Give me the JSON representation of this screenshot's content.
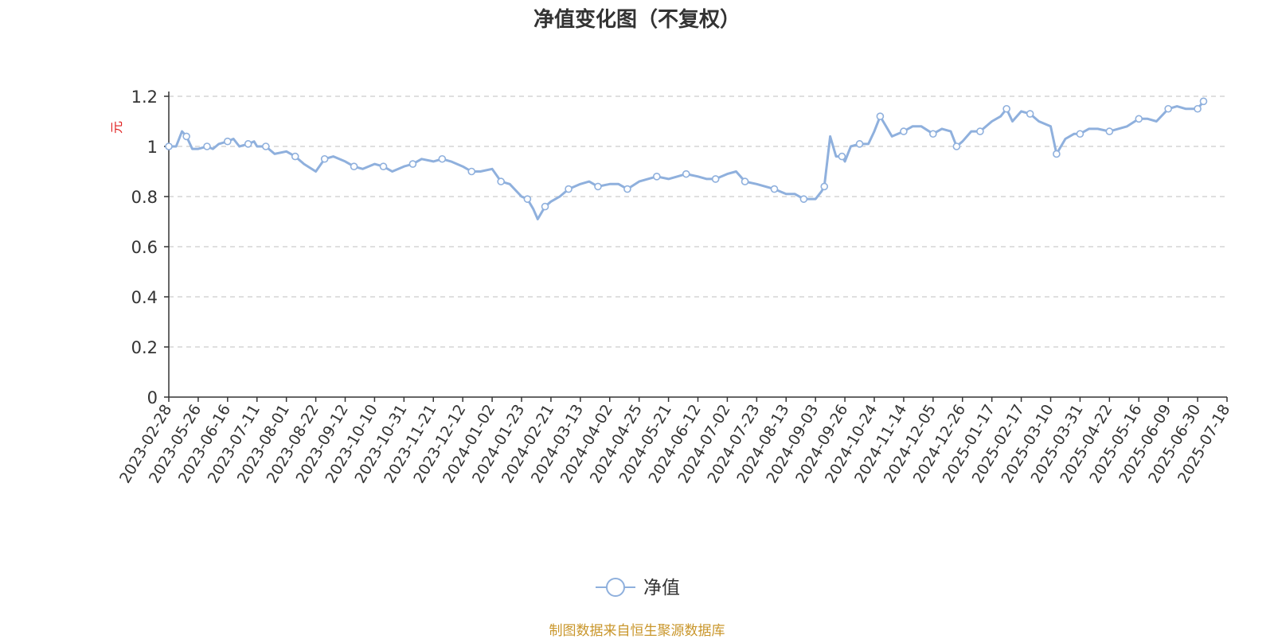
{
  "title": "净值变化图（不复权）",
  "source": "制图数据来自恒生聚源数据库",
  "legend": {
    "label": "净值",
    "position": "bottom-center"
  },
  "colors": {
    "line": "#8fb0dd",
    "title": "#333333",
    "axis": "#333333",
    "grid": "#cccccc",
    "unit": "#e02020",
    "source": "#c9962b"
  },
  "chart_data": {
    "type": "line",
    "title": "净值变化图（不复权）",
    "xlabel": "",
    "ylabel": "元",
    "ylim": [
      0,
      1.2
    ],
    "yticks": [
      "0",
      "0.2",
      "0.4",
      "0.6",
      "0.8",
      "1",
      "1.2"
    ],
    "grid": true,
    "categories": [
      "2023-02-28",
      "2023-05-26",
      "2023-06-16",
      "2023-07-11",
      "2023-08-01",
      "2023-08-22",
      "2023-09-12",
      "2023-10-10",
      "2023-10-31",
      "2023-11-21",
      "2023-12-12",
      "2024-01-02",
      "2024-01-23",
      "2024-02-21",
      "2024-03-13",
      "2024-04-02",
      "2024-04-25",
      "2024-05-21",
      "2024-06-12",
      "2024-07-02",
      "2024-07-23",
      "2024-08-13",
      "2024-09-03",
      "2024-09-26",
      "2024-10-24",
      "2024-11-14",
      "2024-12-05",
      "2024-12-26",
      "2025-01-17",
      "2025-02-17",
      "2025-03-10",
      "2025-03-31",
      "2025-04-22",
      "2025-05-16",
      "2025-06-09",
      "2025-06-30",
      "2025-07-18"
    ],
    "series": [
      {
        "name": "净值",
        "values": [
          {
            "x": 0.0,
            "y": 1.0
          },
          {
            "x": 0.25,
            "y": 1.0
          },
          {
            "x": 0.45,
            "y": 1.06
          },
          {
            "x": 0.6,
            "y": 1.04
          },
          {
            "x": 0.8,
            "y": 0.99
          },
          {
            "x": 1.0,
            "y": 0.99
          },
          {
            "x": 1.3,
            "y": 1.0
          },
          {
            "x": 1.5,
            "y": 0.99
          },
          {
            "x": 1.7,
            "y": 1.01
          },
          {
            "x": 2.0,
            "y": 1.02
          },
          {
            "x": 2.2,
            "y": 1.03
          },
          {
            "x": 2.4,
            "y": 1.0
          },
          {
            "x": 2.7,
            "y": 1.01
          },
          {
            "x": 2.9,
            "y": 1.02
          },
          {
            "x": 3.0,
            "y": 1.0
          },
          {
            "x": 3.3,
            "y": 1.0
          },
          {
            "x": 3.6,
            "y": 0.97
          },
          {
            "x": 4.0,
            "y": 0.98
          },
          {
            "x": 4.3,
            "y": 0.96
          },
          {
            "x": 4.6,
            "y": 0.93
          },
          {
            "x": 5.0,
            "y": 0.9
          },
          {
            "x": 5.3,
            "y": 0.95
          },
          {
            "x": 5.6,
            "y": 0.96
          },
          {
            "x": 6.0,
            "y": 0.94
          },
          {
            "x": 6.3,
            "y": 0.92
          },
          {
            "x": 6.6,
            "y": 0.91
          },
          {
            "x": 7.0,
            "y": 0.93
          },
          {
            "x": 7.3,
            "y": 0.92
          },
          {
            "x": 7.6,
            "y": 0.9
          },
          {
            "x": 8.0,
            "y": 0.92
          },
          {
            "x": 8.3,
            "y": 0.93
          },
          {
            "x": 8.6,
            "y": 0.95
          },
          {
            "x": 9.0,
            "y": 0.94
          },
          {
            "x": 9.3,
            "y": 0.95
          },
          {
            "x": 9.6,
            "y": 0.94
          },
          {
            "x": 10.0,
            "y": 0.92
          },
          {
            "x": 10.3,
            "y": 0.9
          },
          {
            "x": 10.6,
            "y": 0.9
          },
          {
            "x": 11.0,
            "y": 0.91
          },
          {
            "x": 11.3,
            "y": 0.86
          },
          {
            "x": 11.6,
            "y": 0.85
          },
          {
            "x": 12.0,
            "y": 0.8
          },
          {
            "x": 12.2,
            "y": 0.79
          },
          {
            "x": 12.4,
            "y": 0.75
          },
          {
            "x": 12.55,
            "y": 0.71
          },
          {
            "x": 12.8,
            "y": 0.76
          },
          {
            "x": 13.0,
            "y": 0.78
          },
          {
            "x": 13.3,
            "y": 0.8
          },
          {
            "x": 13.6,
            "y": 0.83
          },
          {
            "x": 14.0,
            "y": 0.85
          },
          {
            "x": 14.3,
            "y": 0.86
          },
          {
            "x": 14.6,
            "y": 0.84
          },
          {
            "x": 15.0,
            "y": 0.85
          },
          {
            "x": 15.3,
            "y": 0.85
          },
          {
            "x": 15.6,
            "y": 0.83
          },
          {
            "x": 16.0,
            "y": 0.86
          },
          {
            "x": 16.3,
            "y": 0.87
          },
          {
            "x": 16.6,
            "y": 0.88
          },
          {
            "x": 17.0,
            "y": 0.87
          },
          {
            "x": 17.3,
            "y": 0.88
          },
          {
            "x": 17.6,
            "y": 0.89
          },
          {
            "x": 18.0,
            "y": 0.88
          },
          {
            "x": 18.3,
            "y": 0.87
          },
          {
            "x": 18.6,
            "y": 0.87
          },
          {
            "x": 19.0,
            "y": 0.89
          },
          {
            "x": 19.3,
            "y": 0.9
          },
          {
            "x": 19.6,
            "y": 0.86
          },
          {
            "x": 20.0,
            "y": 0.85
          },
          {
            "x": 20.3,
            "y": 0.84
          },
          {
            "x": 20.6,
            "y": 0.83
          },
          {
            "x": 21.0,
            "y": 0.81
          },
          {
            "x": 21.3,
            "y": 0.81
          },
          {
            "x": 21.6,
            "y": 0.79
          },
          {
            "x": 22.0,
            "y": 0.79
          },
          {
            "x": 22.2,
            "y": 0.82
          },
          {
            "x": 22.3,
            "y": 0.84
          },
          {
            "x": 22.5,
            "y": 1.04
          },
          {
            "x": 22.7,
            "y": 0.96
          },
          {
            "x": 22.9,
            "y": 0.96
          },
          {
            "x": 23.0,
            "y": 0.94
          },
          {
            "x": 23.2,
            "y": 1.0
          },
          {
            "x": 23.5,
            "y": 1.01
          },
          {
            "x": 23.8,
            "y": 1.01
          },
          {
            "x": 24.0,
            "y": 1.06
          },
          {
            "x": 24.2,
            "y": 1.12
          },
          {
            "x": 24.4,
            "y": 1.08
          },
          {
            "x": 24.6,
            "y": 1.04
          },
          {
            "x": 25.0,
            "y": 1.06
          },
          {
            "x": 25.3,
            "y": 1.08
          },
          {
            "x": 25.6,
            "y": 1.08
          },
          {
            "x": 26.0,
            "y": 1.05
          },
          {
            "x": 26.3,
            "y": 1.07
          },
          {
            "x": 26.6,
            "y": 1.06
          },
          {
            "x": 26.8,
            "y": 1.0
          },
          {
            "x": 27.0,
            "y": 1.02
          },
          {
            "x": 27.3,
            "y": 1.06
          },
          {
            "x": 27.6,
            "y": 1.06
          },
          {
            "x": 28.0,
            "y": 1.1
          },
          {
            "x": 28.3,
            "y": 1.12
          },
          {
            "x": 28.5,
            "y": 1.15
          },
          {
            "x": 28.7,
            "y": 1.1
          },
          {
            "x": 29.0,
            "y": 1.14
          },
          {
            "x": 29.3,
            "y": 1.13
          },
          {
            "x": 29.6,
            "y": 1.1
          },
          {
            "x": 30.0,
            "y": 1.08
          },
          {
            "x": 30.2,
            "y": 0.97
          },
          {
            "x": 30.5,
            "y": 1.03
          },
          {
            "x": 30.8,
            "y": 1.05
          },
          {
            "x": 31.0,
            "y": 1.05
          },
          {
            "x": 31.3,
            "y": 1.07
          },
          {
            "x": 31.6,
            "y": 1.07
          },
          {
            "x": 32.0,
            "y": 1.06
          },
          {
            "x": 32.3,
            "y": 1.07
          },
          {
            "x": 32.6,
            "y": 1.08
          },
          {
            "x": 33.0,
            "y": 1.11
          },
          {
            "x": 33.3,
            "y": 1.11
          },
          {
            "x": 33.6,
            "y": 1.1
          },
          {
            "x": 34.0,
            "y": 1.15
          },
          {
            "x": 34.3,
            "y": 1.16
          },
          {
            "x": 34.6,
            "y": 1.15
          },
          {
            "x": 35.0,
            "y": 1.15
          },
          {
            "x": 35.2,
            "y": 1.18
          }
        ]
      }
    ]
  }
}
